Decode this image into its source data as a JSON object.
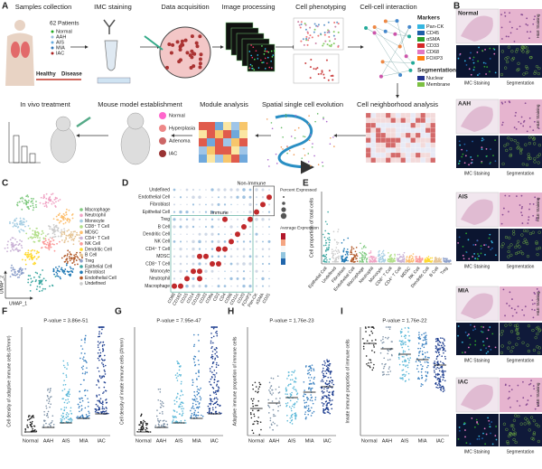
{
  "panels": {
    "a": {
      "letter": "A",
      "steps": [
        "Samples collection",
        "IMC staining",
        "Data acquisition",
        "Image processing",
        "Cell phenotyping",
        "Cell-cell interaction",
        "Cell neighborhood analysis",
        "Spatial single cell evolution",
        "Module analysis",
        "Mouse model establishment",
        "In vivo treatment"
      ],
      "patients": "62 Patients",
      "stages": [
        "Normal",
        "AAH",
        "AIS",
        "MIA",
        "IAC"
      ],
      "healthy": "Healthy",
      "disease": "Disease",
      "mouse_stages": [
        "Normal",
        "Hyperplasia",
        "Adenoma",
        "IAC"
      ]
    },
    "b": {
      "letter": "B",
      "markers_title": "Markers",
      "markers": [
        {
          "name": "Pan-CK",
          "color": "#35b6e0"
        },
        {
          "name": "CD45",
          "color": "#1f5fa8"
        },
        {
          "name": "αSMA",
          "color": "#2ca02c"
        },
        {
          "name": "CD33",
          "color": "#d62728"
        },
        {
          "name": "CD68",
          "color": "#e377c2"
        },
        {
          "name": "FOXP3",
          "color": "#ff7f0e"
        }
      ],
      "segmentation_title": "Segmentation",
      "segmentation": [
        {
          "name": "Nuclear",
          "color": "#24348f"
        },
        {
          "name": "Membrane",
          "color": "#7cc042"
        }
      ],
      "stages": [
        "Normal",
        "AAH",
        "AIS",
        "MIA",
        "IAC"
      ],
      "he_label": "H&E Staining",
      "imc_label": "IMC Staining",
      "seg_label": "Segmentation"
    },
    "c": {
      "letter": "C",
      "x_label": "UMAP_1",
      "y_label": "UMAP_2",
      "legend": [
        {
          "name": "Macrophage",
          "color": "#7fc97f"
        },
        {
          "name": "Neutrophil",
          "color": "#f0a3c4"
        },
        {
          "name": "Monocyte",
          "color": "#a6cee3"
        },
        {
          "name": "CD8⁺ T Cell",
          "color": "#b2df8a"
        },
        {
          "name": "MDSC",
          "color": "#fdbf6f"
        },
        {
          "name": "CD4⁺ T Cell",
          "color": "#cab2d6"
        },
        {
          "name": "NK Cell",
          "color": "#fb9a99"
        },
        {
          "name": "Dendritic Cell",
          "color": "#ffd92f"
        },
        {
          "name": "B Cell",
          "color": "#e5c494"
        },
        {
          "name": "Treg",
          "color": "#8da0cb"
        },
        {
          "name": "Epithelial Cell",
          "color": "#3aa6a0"
        },
        {
          "name": "Fibroblast",
          "color": "#1f78b4"
        },
        {
          "name": "Endothelial Cell",
          "color": "#b15928"
        },
        {
          "name": "Undefined",
          "color": "#cccccc"
        }
      ]
    },
    "d": {
      "letter": "D",
      "rows": [
        "Undefined",
        "Endothelial Cell",
        "Fibroblast",
        "Epithelial Cell",
        "Treg",
        "B Cell",
        "Dendritic Cell",
        "NK Cell",
        "CD4⁺ T Cell",
        "MDSC",
        "CD8⁺ T Cell",
        "Monocyte",
        "Neutrophil",
        "Macrophage"
      ],
      "columns": [
        "CD68",
        "CD163",
        "CD15",
        "CD14",
        "CD11b",
        "CD33",
        "CD8a",
        "CD3",
        "CD4",
        "CD56",
        "CD11c",
        "CD20",
        "FOXP3",
        "Pan-CK",
        "αSMA",
        "CD31"
      ],
      "immune": "Immune",
      "non_immune": "Non-Immune",
      "size_title": "Percent Expressed",
      "color_title": "Average Expression"
    },
    "e": {
      "letter": "E",
      "y_label": "Cell proportion of total cells",
      "categories": [
        "Epithelial Cell",
        "Undefined",
        "Fibroblast",
        "Endothelial Cell",
        "Macrophage",
        "Neutrophil",
        "Monocyte",
        "CD8⁺ T Cell",
        "CD4⁺ T Cell",
        "MDSC",
        "NK Cell",
        "Dendritic Cell",
        "B Cell",
        "Treg"
      ]
    },
    "f": {
      "letter": "F",
      "pvalue": "P-value = 3.86e-51",
      "y_label": "Cell density of adaptive immune cells (#/mm²)",
      "categories": [
        "Normal",
        "AAH",
        "AIS",
        "MIA",
        "IAC"
      ]
    },
    "g": {
      "letter": "G",
      "pvalue": "P-value = 7.95e-47",
      "y_label": "Cell density of innate immune cells (#/mm²)",
      "categories": [
        "Normal",
        "AAH",
        "AIS",
        "MIA",
        "IAC"
      ]
    },
    "h": {
      "letter": "H",
      "pvalue": "P-value = 1.76e-23",
      "y_label": "Adaptive immune proportion of immune cells",
      "categories": [
        "Normal",
        "AAH",
        "AIS",
        "MIA",
        "IAC"
      ]
    },
    "i": {
      "letter": "I",
      "pvalue": "P-value = 1.76e-22",
      "y_label": "Innate immune proportion of immune cells",
      "categories": [
        "Normal",
        "AAH",
        "AIS",
        "MIA",
        "IAC"
      ]
    }
  }
}
